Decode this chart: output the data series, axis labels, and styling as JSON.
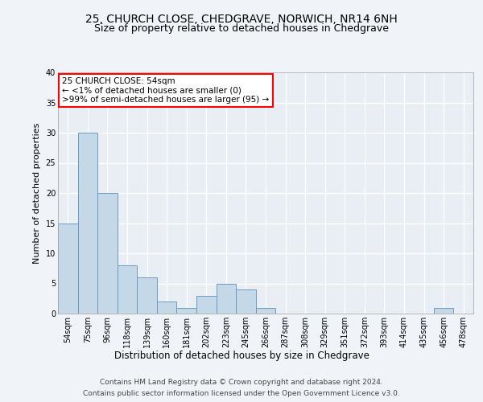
{
  "title1": "25, CHURCH CLOSE, CHEDGRAVE, NORWICH, NR14 6NH",
  "title2": "Size of property relative to detached houses in Chedgrave",
  "xlabel": "Distribution of detached houses by size in Chedgrave",
  "ylabel": "Number of detached properties",
  "categories": [
    "54sqm",
    "75sqm",
    "96sqm",
    "118sqm",
    "139sqm",
    "160sqm",
    "181sqm",
    "202sqm",
    "223sqm",
    "245sqm",
    "266sqm",
    "287sqm",
    "308sqm",
    "329sqm",
    "351sqm",
    "372sqm",
    "393sqm",
    "414sqm",
    "435sqm",
    "456sqm",
    "478sqm"
  ],
  "values": [
    15,
    30,
    20,
    8,
    6,
    2,
    1,
    3,
    5,
    4,
    1,
    0,
    0,
    0,
    0,
    0,
    0,
    0,
    0,
    1,
    0
  ],
  "bar_color": "#c5d8e8",
  "bar_edge_color": "#6a9cc0",
  "ylim": [
    0,
    40
  ],
  "yticks": [
    0,
    5,
    10,
    15,
    20,
    25,
    30,
    35,
    40
  ],
  "annotation_box_text": "25 CHURCH CLOSE: 54sqm\n← <1% of detached houses are smaller (0)\n>99% of semi-detached houses are larger (95) →",
  "footer1": "Contains HM Land Registry data © Crown copyright and database right 2024.",
  "footer2": "Contains public sector information licensed under the Open Government Licence v3.0.",
  "bg_color": "#f0f4f8",
  "plot_bg_color": "#e8eef4",
  "grid_color": "#ffffff",
  "title1_fontsize": 10,
  "title2_fontsize": 9,
  "xlabel_fontsize": 8.5,
  "ylabel_fontsize": 8,
  "tick_fontsize": 7,
  "annotation_fontsize": 7.5,
  "footer_fontsize": 6.5
}
